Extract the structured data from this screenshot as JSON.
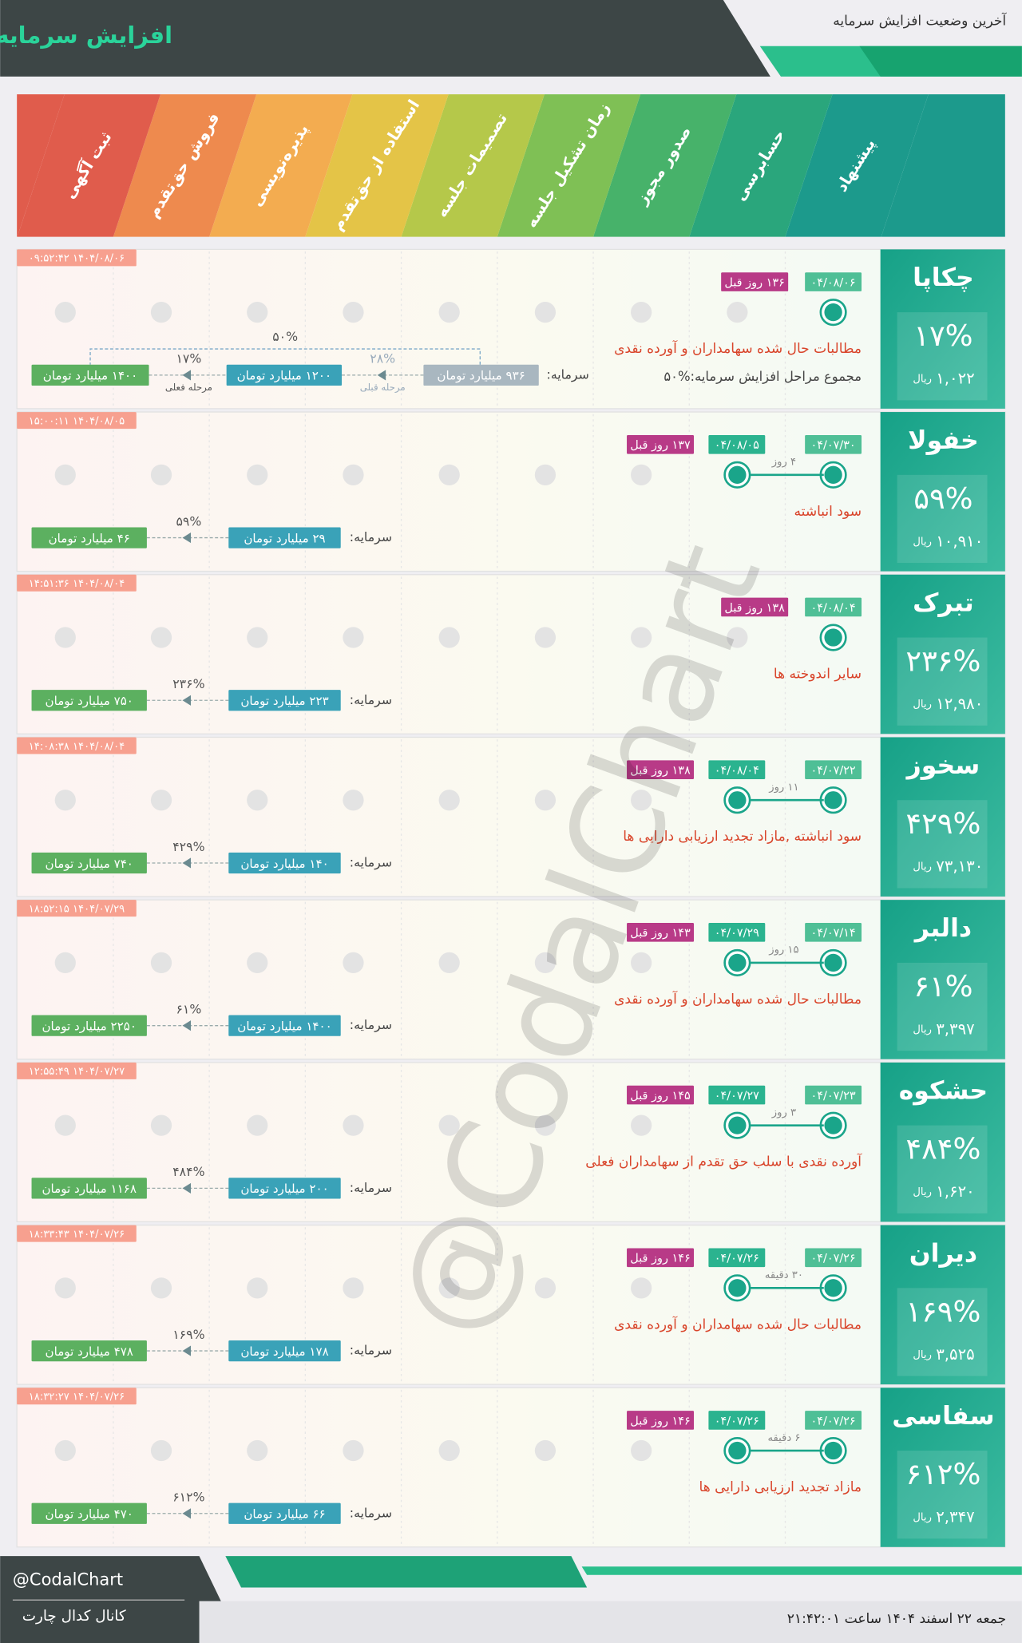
{
  "header": {
    "title": "افزایش سرمایه",
    "subtitle": "آخرین وضعیت افزایش سرمایه"
  },
  "stages": [
    "پیشنهاد",
    "حسابرسی",
    "صدور مجوز",
    "زمان تشکیل جلسه",
    "تصمیمات جلسه",
    "استفاده از حق‌تقدم",
    "پذیره‌نویسی",
    "فروش حق‌تقدم",
    "ثبت آگهی"
  ],
  "labels": {
    "capital": "سرمایه:",
    "currency": "ریال"
  },
  "companies": [
    {
      "name": "چکاپا",
      "timestamp": "۱۴۰۴/۰۸/۰۶ ۰۹:۵۲:۴۲",
      "change": "۱۷%",
      "price": "۱,۰۲۲",
      "dates": [
        "۰۴/۰۸/۰۶"
      ],
      "days_ago": "۱۳۶ روز قبل",
      "reason": "مطالبات حال شده سهامداران و آورده نقدی",
      "total_note": "مجموع مراحل افزایش سرمایه:%۵۰",
      "capital_prev": "۹۳۶ میلیارد تومان",
      "growth_prev": "۲۸%",
      "prev_label": "مرحله قبلی",
      "capital_from": "۱۲۰۰ میلیارد تومان",
      "growth": "۱۷%",
      "current_label": "مرحله فعلی",
      "capital_to": "۱۴۰۰ میلیارد تومان",
      "total_growth": "۵۰%"
    },
    {
      "name": "خفولا",
      "timestamp": "۱۴۰۴/۰۸/۰۵ ۱۵:۰۰:۱۱",
      "change": "۵۹%",
      "price": "۱۰,۹۱۰",
      "dates": [
        "۰۴/۰۷/۳۰",
        "۰۴/۰۸/۰۵"
      ],
      "days_ago": "۱۳۷ روز قبل",
      "interval": "۴ روز",
      "reason": "سود انباشته",
      "capital_from": "۲۹ میلیارد تومان",
      "growth": "۵۹%",
      "capital_to": "۴۶ میلیارد تومان"
    },
    {
      "name": "تبرک",
      "timestamp": "۱۴۰۴/۰۸/۰۴ ۱۴:۵۱:۳۶",
      "change": "۲۳۶%",
      "price": "۱۲,۹۸۰",
      "dates": [
        "۰۴/۰۸/۰۴"
      ],
      "days_ago": "۱۳۸ روز قبل",
      "reason": "سایر اندوخته ها",
      "capital_from": "۲۲۳ میلیارد تومان",
      "growth": "۲۳۶%",
      "capital_to": "۷۵۰ میلیارد تومان"
    },
    {
      "name": "سخوز",
      "timestamp": "۱۴۰۴/۰۸/۰۴ ۱۴:۰۸:۳۸",
      "change": "۴۲۹%",
      "price": "۷۳,۱۳۰",
      "dates": [
        "۰۴/۰۷/۲۲",
        "۰۴/۰۸/۰۴"
      ],
      "days_ago": "۱۳۸ روز قبل",
      "interval": "۱۱ روز",
      "reason": "سود انباشته ,مازاد تجدید ارزیابی دارایی ها",
      "capital_from": "۱۴۰ میلیارد تومان",
      "growth": "۴۲۹%",
      "capital_to": "۷۴۰ میلیارد تومان"
    },
    {
      "name": "دالبر",
      "timestamp": "۱۴۰۴/۰۷/۲۹ ۱۸:۵۲:۱۵",
      "change": "۶۱%",
      "price": "۳,۳۹۷",
      "dates": [
        "۰۴/۰۷/۱۴",
        "۰۴/۰۷/۲۹"
      ],
      "days_ago": "۱۴۳ روز قبل",
      "interval": "۱۵ روز",
      "reason": "مطالبات حال شده سهامداران و آورده نقدی",
      "capital_from": "۱۴۰۰ میلیارد تومان",
      "growth": "۶۱%",
      "capital_to": "۲۲۵۰ میلیارد تومان"
    },
    {
      "name": "حشکوه",
      "timestamp": "۱۴۰۴/۰۷/۲۷ ۱۲:۵۵:۴۹",
      "change": "۴۸۴%",
      "price": "۱,۶۲۰",
      "dates": [
        "۰۴/۰۷/۲۳",
        "۰۴/۰۷/۲۷"
      ],
      "days_ago": "۱۴۵ روز قبل",
      "interval": "۳ روز",
      "reason": "آورده نقدی با سلب حق تقدم از سهامداران فعلی",
      "capital_from": "۲۰۰ میلیارد تومان",
      "growth": "۴۸۴%",
      "capital_to": "۱۱۶۸ میلیارد تومان"
    },
    {
      "name": "دیران",
      "timestamp": "۱۴۰۴/۰۷/۲۶ ۱۸:۳۳:۴۳",
      "change": "۱۶۹%",
      "price": "۳,۵۲۵",
      "dates": [
        "۰۴/۰۷/۲۶",
        "۰۴/۰۷/۲۶"
      ],
      "days_ago": "۱۴۶ روز قبل",
      "interval": "۳۰ دقیقه",
      "reason": "مطالبات حال شده سهامداران و آورده نقدی",
      "capital_from": "۱۷۸ میلیارد تومان",
      "growth": "۱۶۹%",
      "capital_to": "۴۷۸ میلیارد تومان"
    },
    {
      "name": "سفاسی",
      "timestamp": "۱۴۰۴/۰۷/۲۶ ۱۸:۳۲:۲۷",
      "change": "۶۱۲%",
      "price": "۲,۳۴۷",
      "dates": [
        "۰۴/۰۷/۲۶",
        "۰۴/۰۷/۲۶"
      ],
      "days_ago": "۱۴۶ روز قبل",
      "interval": "۶ دقیقه",
      "reason": "مازاد تجدید ارزیابی دارایی ها",
      "capital_from": "۶۶ میلیارد تومان",
      "growth": "۶۱۲%",
      "capital_to": "۴۷۰ میلیارد تومان"
    }
  ],
  "watermark": "@CodalChart",
  "footer": {
    "handle": "@CodalChart",
    "channel": "کانال کدال چارت",
    "date": "جمعه ۲۲ اسفند ۱۴۰۴ ساعت ۲۱:۴۲:۰۱"
  }
}
